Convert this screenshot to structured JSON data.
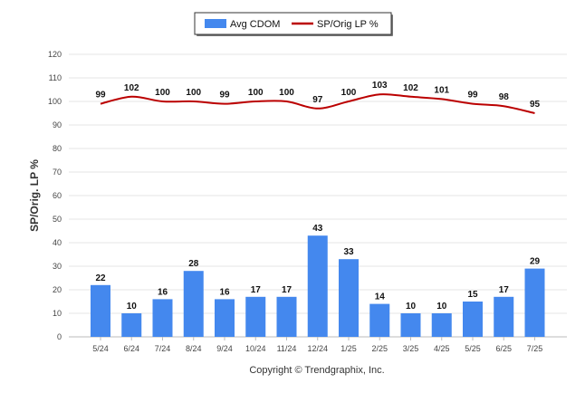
{
  "chart_data": {
    "type": "bar+line",
    "categories": [
      "5/24",
      "6/24",
      "7/24",
      "8/24",
      "9/24",
      "10/24",
      "11/24",
      "12/24",
      "1/25",
      "2/25",
      "3/25",
      "4/25",
      "5/25",
      "6/25",
      "7/25"
    ],
    "series": [
      {
        "name": "Avg CDOM",
        "type": "bar",
        "color": "#4488ee",
        "values": [
          22,
          10,
          16,
          28,
          16,
          17,
          17,
          43,
          33,
          14,
          10,
          10,
          15,
          17,
          29
        ]
      },
      {
        "name": "SP/Orig LP %",
        "type": "line",
        "color": "#bb0000",
        "values": [
          99,
          102,
          100,
          100,
          99,
          100,
          100,
          97,
          100,
          103,
          102,
          101,
          99,
          98,
          95
        ]
      }
    ],
    "ylabel": "SP/Orig. LP %",
    "ylim": [
      0,
      120
    ],
    "yticks": [
      0,
      10,
      20,
      30,
      40,
      50,
      60,
      70,
      80,
      90,
      100,
      110,
      120
    ],
    "grid": true,
    "legend_position": "top-center"
  },
  "footer": {
    "copyright": "Copyright © Trendgraphix, Inc."
  }
}
